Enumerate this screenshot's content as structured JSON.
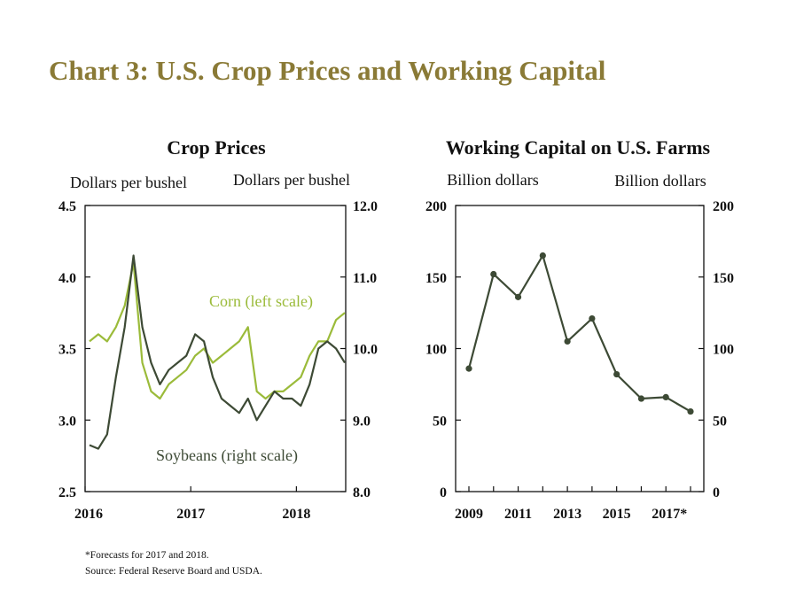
{
  "title": "Chart 3: U.S. Crop Prices and Working Capital",
  "colors": {
    "title": "#8a7a36",
    "corn": "#9bbb3a",
    "soybeans": "#3d4a35",
    "working_capital": "#3d4a35"
  },
  "chart_data": [
    {
      "type": "line",
      "title": "Crop Prices",
      "left_axis_label": "Dollars per bushel",
      "right_axis_label": "Dollars per bushel",
      "left_ylim": [
        2.5,
        4.5
      ],
      "left_ticks": [
        "2.5",
        "3.0",
        "3.5",
        "4.0",
        "4.5"
      ],
      "right_ylim": [
        8.0,
        12.0
      ],
      "right_ticks": [
        "8.0",
        "9.0",
        "10.0",
        "11.0",
        "12.0"
      ],
      "x_ticks": [
        "2016",
        "2017",
        "2018"
      ],
      "series": [
        {
          "name": "Corn (left scale)",
          "axis": "left",
          "x": [
            "2016-01",
            "2016-02",
            "2016-03",
            "2016-04",
            "2016-05",
            "2016-06",
            "2016-07",
            "2016-08",
            "2016-09",
            "2016-10",
            "2016-11",
            "2016-12",
            "2017-01",
            "2017-02",
            "2017-03",
            "2017-04",
            "2017-05",
            "2017-06",
            "2017-07",
            "2017-08",
            "2017-09",
            "2017-10",
            "2017-11",
            "2017-12",
            "2018-01",
            "2018-02",
            "2018-03",
            "2018-04",
            "2018-05",
            "2018-06"
          ],
          "values": [
            3.55,
            3.6,
            3.55,
            3.65,
            3.8,
            4.1,
            3.4,
            3.2,
            3.15,
            3.25,
            3.3,
            3.35,
            3.45,
            3.5,
            3.4,
            3.45,
            3.5,
            3.55,
            3.65,
            3.2,
            3.15,
            3.2,
            3.2,
            3.25,
            3.3,
            3.45,
            3.55,
            3.55,
            3.7,
            3.75
          ]
        },
        {
          "name": "Soybeans (right scale)",
          "axis": "right",
          "x": [
            "2016-01",
            "2016-02",
            "2016-03",
            "2016-04",
            "2016-05",
            "2016-06",
            "2016-07",
            "2016-08",
            "2016-09",
            "2016-10",
            "2016-11",
            "2016-12",
            "2017-01",
            "2017-02",
            "2017-03",
            "2017-04",
            "2017-05",
            "2017-06",
            "2017-07",
            "2017-08",
            "2017-09",
            "2017-10",
            "2017-11",
            "2017-12",
            "2018-01",
            "2018-02",
            "2018-03",
            "2018-04",
            "2018-05",
            "2018-06"
          ],
          "values": [
            8.65,
            8.6,
            8.8,
            9.6,
            10.3,
            11.3,
            10.3,
            9.8,
            9.5,
            9.7,
            9.8,
            9.9,
            10.2,
            10.1,
            9.6,
            9.3,
            9.2,
            9.1,
            9.3,
            9.0,
            9.2,
            9.4,
            9.3,
            9.3,
            9.2,
            9.5,
            10.0,
            10.1,
            10.0,
            9.8
          ]
        }
      ],
      "annotations": [
        "Corn (left scale)",
        "Soybeans (right scale)"
      ]
    },
    {
      "type": "line",
      "title": "Working Capital on U.S. Farms",
      "left_axis_label": "Billion dollars",
      "right_axis_label": "Billion dollars",
      "ylim": [
        0,
        200
      ],
      "y_ticks": [
        "0",
        "50",
        "100",
        "150",
        "200"
      ],
      "x_tick_labels": [
        "2009",
        "2011",
        "2013",
        "2015",
        "2017*"
      ],
      "x": [
        2009,
        2010,
        2011,
        2012,
        2013,
        2014,
        2015,
        2016,
        2017,
        2018
      ],
      "values": [
        86,
        152,
        136,
        165,
        105,
        121,
        82,
        65,
        66,
        56
      ]
    }
  ],
  "footnotes": {
    "forecast": "*Forecasts for 2017 and 2018.",
    "source": "Source: Federal Reserve Board and USDA."
  }
}
